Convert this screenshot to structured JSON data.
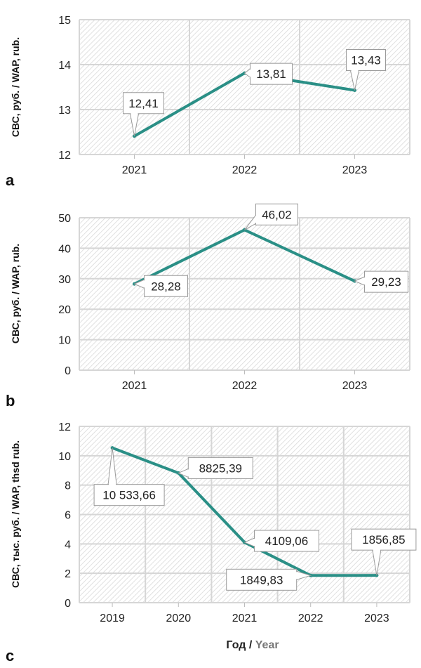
{
  "chart_data": [
    {
      "panel_label": "a",
      "type": "line",
      "ylabel": "СВС, руб. / WAP, rub.",
      "ylim": [
        12,
        15
      ],
      "yticks": [
        "12",
        "13",
        "14",
        "15"
      ],
      "categories": [
        "2021",
        "2022",
        "2023"
      ],
      "series": [
        {
          "values": [
            12.41,
            13.81,
            13.43
          ]
        }
      ],
      "data_labels": [
        "12,41",
        "13,81",
        "13,43"
      ],
      "grid": true
    },
    {
      "panel_label": "b",
      "type": "line",
      "ylabel": "СВС, руб. / WAP, rub.",
      "ylim": [
        0,
        50
      ],
      "yticks": [
        "0",
        "10",
        "20",
        "30",
        "40",
        "50"
      ],
      "categories": [
        "2021",
        "2022",
        "2023"
      ],
      "series": [
        {
          "values": [
            28.28,
            46.02,
            29.23
          ]
        }
      ],
      "data_labels": [
        "28,28",
        "46,02",
        "29,23"
      ],
      "grid": true
    },
    {
      "panel_label": "c",
      "type": "line",
      "ylabel": "СВС, тыс. руб. / WAP, thsd rub.",
      "ylim": [
        0,
        12
      ],
      "yticks": [
        "0",
        "2",
        "4",
        "6",
        "8",
        "10",
        "12"
      ],
      "categories": [
        "2019",
        "2020",
        "2021",
        "2022",
        "2023"
      ],
      "series": [
        {
          "values": [
            10.53366,
            8.82539,
            4.10906,
            1.84983,
            1.85685
          ]
        }
      ],
      "data_labels": [
        "10 533,66",
        "8825,39",
        "4109,06",
        "1849,83",
        "1856,85"
      ],
      "grid": true
    }
  ],
  "xlabel": {
    "ru": "Год / ",
    "en": "Year"
  },
  "colors": {
    "line": "#2a8f86",
    "grid": "#d6d6d6",
    "hatch": "#d9d9d9"
  }
}
